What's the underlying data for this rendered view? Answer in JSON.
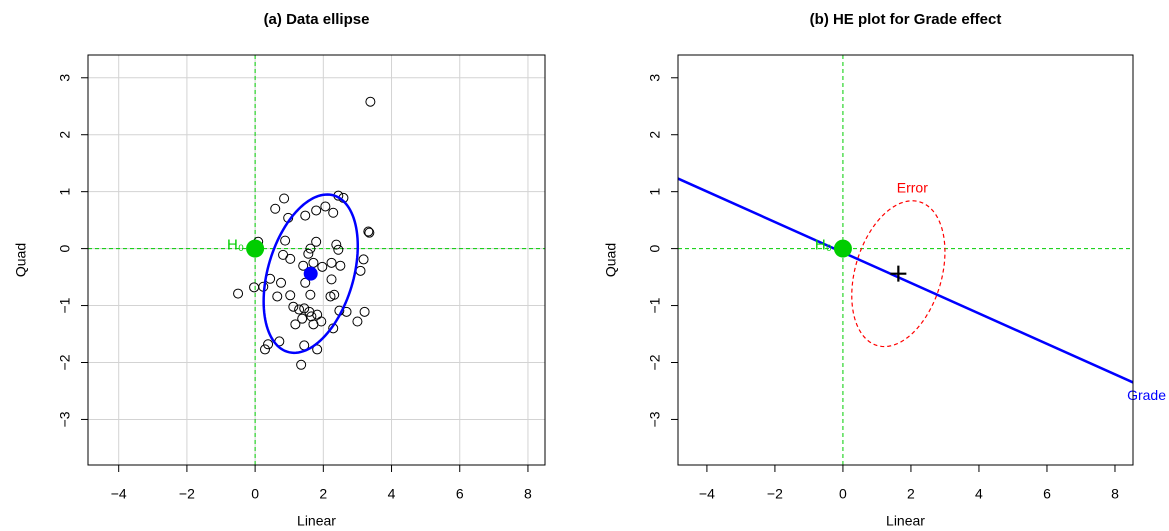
{
  "chart_data": [
    {
      "type": "scatter",
      "title": "(a) Data ellipse",
      "x_label": "Linear",
      "y_label": "Quad",
      "xlim": [
        -4.9,
        8.5
      ],
      "ylim": [
        -3.8,
        3.4
      ],
      "xticks": [
        {
          "value": -4,
          "label": "−4"
        },
        {
          "value": -2,
          "label": "−2"
        },
        0,
        2,
        4,
        6,
        8
      ],
      "yticks": [
        {
          "value": -3,
          "label": "−3"
        },
        {
          "value": -2,
          "label": "−2"
        },
        {
          "value": -1,
          "label": "−1"
        },
        0,
        1,
        2,
        3
      ],
      "grid": true,
      "h0": {
        "label": "H₀",
        "x": 0,
        "y": 0,
        "color": "#00cd00"
      },
      "x": [
        3.38,
        0.59,
        0.85,
        0.97,
        1.79,
        1.47,
        2.06,
        2.29,
        2.44,
        2.59,
        3.32,
        3.35,
        0.09,
        0.88,
        0.82,
        1.03,
        0.44,
        1.41,
        1.56,
        1.62,
        1.79,
        1.71,
        1.97,
        2.24,
        2.5,
        2.38,
        2.44,
        2.24,
        2.21,
        2.32,
        3.18,
        3.09,
        0.24,
        -0.03,
        -0.5,
        0.65,
        1.03,
        0.76,
        1.47,
        1.62,
        1.12,
        1.29,
        1.44,
        1.18,
        1.38,
        1.59,
        1.65,
        1.71,
        1.82,
        1.94,
        2.47,
        2.68,
        3.21,
        3.0,
        2.29,
        0.71,
        0.38,
        0.29,
        1.44,
        1.82,
        1.35
      ],
      "values": [
        2.58,
        0.7,
        0.88,
        0.54,
        0.67,
        0.58,
        0.74,
        0.63,
        0.93,
        0.89,
        0.3,
        0.28,
        0.12,
        0.14,
        -0.11,
        -0.18,
        -0.53,
        -0.3,
        -0.09,
        0.0,
        0.12,
        -0.25,
        -0.32,
        -0.25,
        -0.3,
        0.07,
        -0.02,
        -0.54,
        -0.84,
        -0.81,
        -0.19,
        -0.39,
        -0.67,
        -0.68,
        -0.79,
        -0.84,
        -0.82,
        -0.6,
        -0.6,
        -0.81,
        -1.02,
        -1.07,
        -1.05,
        -1.33,
        -1.23,
        -1.11,
        -1.19,
        -1.33,
        -1.16,
        -1.28,
        -1.09,
        -1.11,
        -1.11,
        -1.28,
        -1.4,
        -1.63,
        -1.68,
        -1.77,
        -1.7,
        -1.77,
        -2.04
      ],
      "mean": {
        "x": 1.63,
        "y": -0.44,
        "color": "#0000ff"
      },
      "ellipse": {
        "cx": 1.63,
        "cy": -0.44,
        "half_width": 1.38,
        "half_height": 1.39,
        "r": 0.35,
        "color": "#0000ff"
      }
    },
    {
      "type": "he_plot",
      "title": "(b) HE plot for Grade effect",
      "x_label": "Linear",
      "y_label": "Quad",
      "xlim": [
        -4.85,
        8.53
      ],
      "ylim": [
        -3.8,
        3.4
      ],
      "xticks": [
        {
          "value": -4,
          "label": "−4"
        },
        {
          "value": -2,
          "label": "−2"
        },
        0,
        2,
        4,
        6,
        8
      ],
      "yticks": [
        {
          "value": -3,
          "label": "−3"
        },
        {
          "value": -2,
          "label": "−2"
        },
        {
          "value": -1,
          "label": "−1"
        },
        0,
        1,
        2,
        3
      ],
      "grid": false,
      "h0": {
        "label": "H₀",
        "x": 0,
        "y": 0,
        "color": "#00cd00"
      },
      "mean": {
        "x": 1.63,
        "y": -0.44,
        "color": "#000000"
      },
      "ellipse": {
        "label": "Error",
        "cx": 1.63,
        "cy": -0.44,
        "half_width": 1.37,
        "half_height": 1.28,
        "r": 0.3,
        "color": "#ff0000"
      },
      "hypothesis": {
        "label": "Grade",
        "x": [
          -4.85,
          8.53
        ],
        "values": [
          1.23,
          -2.35
        ],
        "color": "#0000ff"
      }
    }
  ]
}
